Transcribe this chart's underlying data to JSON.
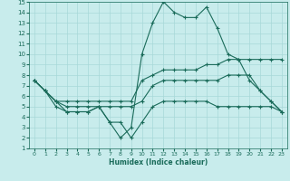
{
  "xlabel": "Humidex (Indice chaleur)",
  "ylabel": "",
  "xlim": [
    -0.5,
    23.5
  ],
  "ylim": [
    1,
    15
  ],
  "xticks": [
    0,
    1,
    2,
    3,
    4,
    5,
    6,
    7,
    8,
    9,
    10,
    11,
    12,
    13,
    14,
    15,
    16,
    17,
    18,
    19,
    20,
    21,
    22,
    23
  ],
  "yticks": [
    1,
    2,
    3,
    4,
    5,
    6,
    7,
    8,
    9,
    10,
    11,
    12,
    13,
    14,
    15
  ],
  "bg_color": "#c8ecec",
  "grid_color": "#a8d8d8",
  "line_color": "#1a6b5a",
  "lines": [
    {
      "x": [
        0,
        1,
        2,
        3,
        4,
        5,
        6,
        7,
        8,
        9,
        10,
        11,
        12,
        13,
        14,
        15,
        16,
        17,
        18,
        19,
        20,
        21,
        22,
        23
      ],
      "y": [
        7.5,
        6.5,
        5.0,
        4.5,
        4.5,
        4.5,
        5.0,
        3.5,
        3.5,
        2.0,
        3.5,
        5.0,
        5.5,
        5.5,
        5.5,
        5.5,
        5.5,
        5.0,
        5.0,
        5.0,
        5.0,
        5.0,
        5.0,
        4.5
      ]
    },
    {
      "x": [
        0,
        1,
        2,
        3,
        4,
        5,
        6,
        7,
        8,
        9,
        10,
        11,
        12,
        13,
        14,
        15,
        16,
        17,
        18,
        19,
        20,
        21,
        22,
        23
      ],
      "y": [
        7.5,
        6.5,
        5.5,
        5.5,
        5.5,
        5.5,
        5.5,
        5.5,
        5.5,
        5.5,
        7.5,
        8.0,
        8.5,
        8.5,
        8.5,
        8.5,
        9.0,
        9.0,
        9.5,
        9.5,
        9.5,
        9.5,
        9.5,
        9.5
      ]
    },
    {
      "x": [
        0,
        1,
        2,
        3,
        4,
        5,
        6,
        7,
        8,
        9,
        10,
        11,
        12,
        13,
        14,
        15,
        16,
        17,
        18,
        19,
        20,
        21,
        22,
        23
      ],
      "y": [
        7.5,
        6.5,
        5.5,
        5.0,
        5.0,
        5.0,
        5.0,
        5.0,
        5.0,
        5.0,
        5.5,
        7.0,
        7.5,
        7.5,
        7.5,
        7.5,
        7.5,
        7.5,
        8.0,
        8.0,
        8.0,
        6.5,
        5.5,
        4.5
      ]
    },
    {
      "x": [
        0,
        1,
        2,
        3,
        4,
        5,
        6,
        7,
        8,
        9,
        10,
        11,
        12,
        13,
        14,
        15,
        16,
        17,
        18,
        19,
        20,
        21,
        22,
        23
      ],
      "y": [
        7.5,
        6.5,
        5.5,
        4.5,
        4.5,
        4.5,
        5.0,
        3.5,
        2.0,
        3.0,
        10.0,
        13.0,
        15.0,
        14.0,
        13.5,
        13.5,
        14.5,
        12.5,
        10.0,
        9.5,
        7.5,
        6.5,
        5.5,
        4.5
      ]
    }
  ]
}
